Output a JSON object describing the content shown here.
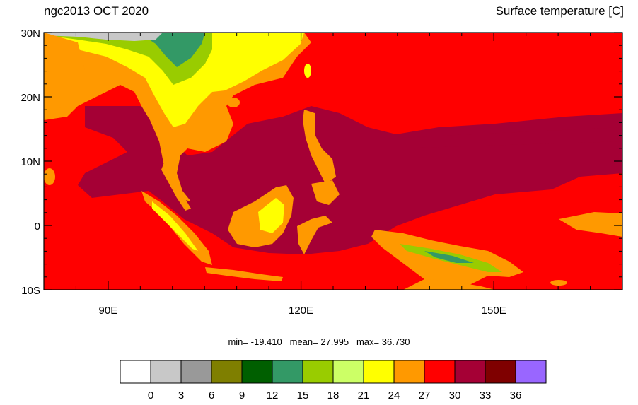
{
  "title_left": "ngc2013 OCT 2020",
  "title_right": "Surface temperature [C]",
  "axes": {
    "lat_ticks": [
      {
        "value": 30,
        "label": "30N"
      },
      {
        "value": 20,
        "label": "20N"
      },
      {
        "value": 10,
        "label": "10N"
      },
      {
        "value": 0,
        "label": "0"
      },
      {
        "value": -10,
        "label": "10S"
      }
    ],
    "lon_ticks": [
      {
        "value": 90,
        "label": "90E"
      },
      {
        "value": 120,
        "label": "120E"
      },
      {
        "value": 150,
        "label": "150E"
      }
    ],
    "lon_range": [
      80,
      170
    ],
    "lat_range": [
      -10,
      30
    ]
  },
  "stats": {
    "min_label": "min=",
    "min": "-19.410",
    "mean_label": "mean=",
    "mean": "27.995",
    "max_label": "max=",
    "max": "36.730"
  },
  "colorbar": {
    "colors": [
      "#ffffff",
      "#c8c8c8",
      "#999999",
      "#7f7f00",
      "#005f00",
      "#339966",
      "#99cc00",
      "#ccff66",
      "#ffff00",
      "#ff9900",
      "#ff0000",
      "#a50035",
      "#7f0000",
      "#9966ff"
    ],
    "labels": [
      "0",
      "3",
      "6",
      "9",
      "12",
      "15",
      "18",
      "21",
      "24",
      "27",
      "30",
      "33",
      "36"
    ]
  },
  "palette": {
    "ocean_warm": "#ff0000",
    "ocean_hot": "#a50035",
    "land_mild": "#ff9900",
    "land_cool": "#ffff00",
    "land_cold": "#99cc00",
    "mountain": "#339966"
  }
}
